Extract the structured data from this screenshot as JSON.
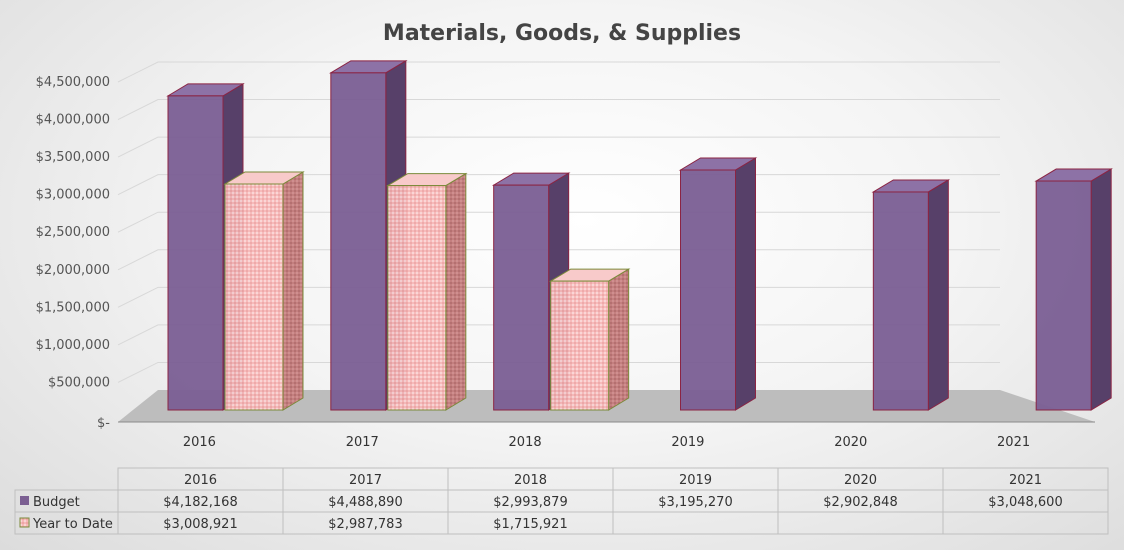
{
  "chart_data": {
    "type": "bar",
    "title": "Materials, Goods, & Supplies",
    "categories": [
      "2016",
      "2017",
      "2018",
      "2019",
      "2020",
      "2021"
    ],
    "series": [
      {
        "name": "Budget",
        "values": [
          4182168,
          4488890,
          2993879,
          3195270,
          2902848,
          3048600
        ],
        "color": "#7b5f92"
      },
      {
        "name": "Year to Date",
        "values": [
          3008921,
          2987783,
          1715921,
          null,
          null,
          null
        ],
        "color": "#f6b2b2"
      }
    ],
    "ylim": [
      0,
      4500000
    ],
    "yticks": [
      "$-",
      "$500,000",
      "$1,000,000",
      "$1,500,000",
      "$2,000,000",
      "$2,500,000",
      "$3,000,000",
      "$3,500,000",
      "$4,000,000",
      "$4,500,000"
    ],
    "grid": true,
    "legend": "bottom data table",
    "table": {
      "rows": [
        {
          "label": "Budget",
          "cells": [
            "$4,182,168",
            "$4,488,890",
            "$2,993,879",
            "$3,195,270",
            "$2,902,848",
            "$3,048,600"
          ]
        },
        {
          "label": "Year to Date",
          "cells": [
            "$3,008,921",
            "$2,987,783",
            "$1,715,921",
            "",
            "",
            ""
          ]
        }
      ]
    }
  }
}
